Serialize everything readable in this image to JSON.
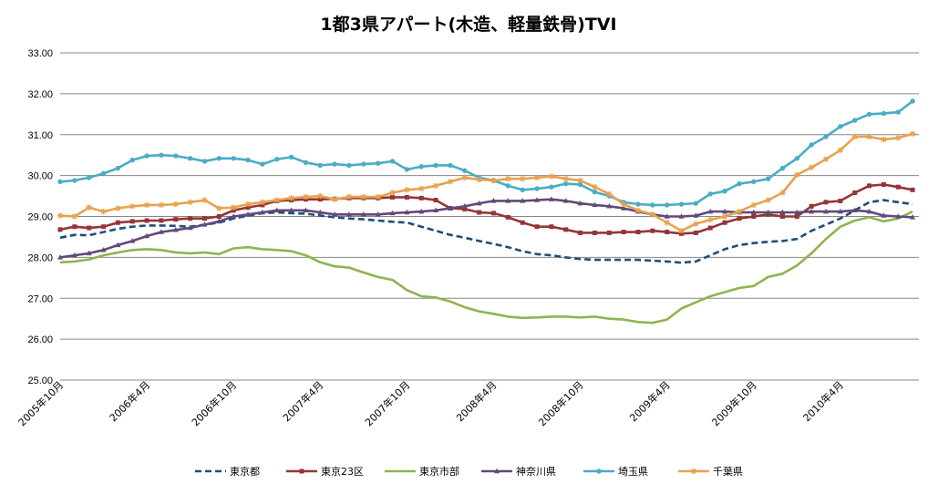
{
  "chart_data": {
    "type": "line",
    "title": "1都3県アパート(木造、軽量鉄骨)TVI",
    "ylim": [
      25.0,
      33.0
    ],
    "yticks": [
      "25.00",
      "26.00",
      "27.00",
      "28.00",
      "29.00",
      "30.00",
      "31.00",
      "32.00",
      "33.00"
    ],
    "grid": true,
    "legend_position": "bottom",
    "x_tick_labels": [
      "2005年10月",
      "2006年4月",
      "2006年10月",
      "2007年4月",
      "2007年10月",
      "2008年4月",
      "2008年10月",
      "2009年4月",
      "2009年10月",
      "2010年4月"
    ],
    "x": [
      "2005-10",
      "2005-11",
      "2005-12",
      "2006-01",
      "2006-02",
      "2006-03",
      "2006-04",
      "2006-05",
      "2006-06",
      "2006-07",
      "2006-08",
      "2006-09",
      "2006-10",
      "2006-11",
      "2006-12",
      "2007-01",
      "2007-02",
      "2007-03",
      "2007-04",
      "2007-05",
      "2007-06",
      "2007-07",
      "2007-08",
      "2007-09",
      "2007-10",
      "2007-11",
      "2007-12",
      "2008-01",
      "2008-02",
      "2008-03",
      "2008-04",
      "2008-05",
      "2008-06",
      "2008-07",
      "2008-08",
      "2008-09",
      "2008-10",
      "2008-11",
      "2008-12",
      "2009-01",
      "2009-02",
      "2009-03",
      "2009-04",
      "2009-05",
      "2009-06",
      "2009-07",
      "2009-08",
      "2009-09",
      "2009-10",
      "2009-11",
      "2009-12",
      "2010-01",
      "2010-02",
      "2010-03",
      "2010-04",
      "2010-05",
      "2010-06",
      "2010-07",
      "2010-08",
      "2010-09"
    ],
    "series": [
      {
        "name": "東京都",
        "color": "#1F4E79",
        "style": "dashed",
        "marker": "none",
        "values": [
          28.48,
          28.55,
          28.54,
          28.62,
          28.7,
          28.75,
          28.78,
          28.78,
          28.77,
          28.75,
          28.8,
          28.85,
          28.95,
          29.02,
          29.08,
          29.1,
          29.08,
          29.07,
          29.02,
          28.98,
          28.95,
          28.93,
          28.9,
          28.87,
          28.85,
          28.75,
          28.65,
          28.55,
          28.48,
          28.4,
          28.33,
          28.25,
          28.15,
          28.08,
          28.05,
          28.0,
          27.96,
          27.94,
          27.94,
          27.94,
          27.94,
          27.92,
          27.9,
          27.87,
          27.9,
          28.05,
          28.2,
          28.3,
          28.35,
          28.38,
          28.4,
          28.45,
          28.65,
          28.8,
          28.95,
          29.15,
          29.35,
          29.4,
          29.35,
          29.3
        ]
      },
      {
        "name": "東京23区",
        "color": "#943634",
        "style": "solid",
        "marker": "square",
        "values": [
          28.68,
          28.75,
          28.72,
          28.75,
          28.85,
          28.88,
          28.9,
          28.9,
          28.93,
          28.95,
          28.95,
          29.0,
          29.15,
          29.22,
          29.28,
          29.38,
          29.4,
          29.42,
          29.42,
          29.43,
          29.45,
          29.45,
          29.45,
          29.47,
          29.47,
          29.45,
          29.4,
          29.2,
          29.18,
          29.1,
          29.08,
          28.98,
          28.85,
          28.75,
          28.75,
          28.68,
          28.6,
          28.6,
          28.6,
          28.62,
          28.62,
          28.65,
          28.62,
          28.58,
          28.6,
          28.72,
          28.85,
          28.95,
          29.0,
          29.05,
          29.0,
          29.0,
          29.25,
          29.35,
          29.38,
          29.58,
          29.75,
          29.78,
          29.72,
          29.65
        ]
      },
      {
        "name": "東京市部",
        "color": "#8EB44F",
        "style": "solid",
        "marker": "none",
        "values": [
          27.88,
          27.9,
          27.95,
          28.05,
          28.12,
          28.18,
          28.2,
          28.18,
          28.12,
          28.1,
          28.12,
          28.08,
          28.22,
          28.25,
          28.2,
          28.18,
          28.15,
          28.05,
          27.88,
          27.78,
          27.75,
          27.63,
          27.52,
          27.45,
          27.2,
          27.05,
          27.02,
          26.92,
          26.78,
          26.68,
          26.62,
          26.55,
          26.52,
          26.53,
          26.55,
          26.55,
          26.53,
          26.55,
          26.5,
          26.48,
          26.42,
          26.4,
          26.48,
          26.75,
          26.9,
          27.05,
          27.15,
          27.25,
          27.3,
          27.52,
          27.6,
          27.8,
          28.1,
          28.45,
          28.75,
          28.9,
          28.98,
          28.88,
          28.95,
          29.12
        ]
      },
      {
        "name": "神奈川県",
        "color": "#60497B",
        "style": "solid",
        "marker": "triangle",
        "values": [
          28.0,
          28.05,
          28.1,
          28.18,
          28.3,
          28.4,
          28.52,
          28.62,
          28.67,
          28.72,
          28.8,
          28.88,
          29.0,
          29.05,
          29.1,
          29.15,
          29.15,
          29.15,
          29.1,
          29.05,
          29.05,
          29.05,
          29.05,
          29.08,
          29.1,
          29.12,
          29.15,
          29.2,
          29.25,
          29.32,
          29.38,
          29.38,
          29.38,
          29.4,
          29.42,
          29.38,
          29.32,
          29.28,
          29.25,
          29.2,
          29.12,
          29.05,
          29.0,
          29.0,
          29.02,
          29.12,
          29.12,
          29.1,
          29.1,
          29.1,
          29.1,
          29.1,
          29.12,
          29.12,
          29.12,
          29.15,
          29.12,
          29.02,
          29.0,
          28.98
        ]
      },
      {
        "name": "埼玉県",
        "color": "#4AACC6",
        "style": "solid",
        "marker": "circle",
        "values": [
          29.85,
          29.88,
          29.95,
          30.05,
          30.18,
          30.38,
          30.48,
          30.5,
          30.48,
          30.42,
          30.35,
          30.42,
          30.42,
          30.38,
          30.28,
          30.4,
          30.45,
          30.32,
          30.25,
          30.28,
          30.25,
          30.28,
          30.3,
          30.35,
          30.15,
          30.22,
          30.25,
          30.25,
          30.12,
          29.95,
          29.88,
          29.75,
          29.65,
          29.68,
          29.72,
          29.8,
          29.78,
          29.6,
          29.5,
          29.35,
          29.3,
          29.28,
          29.28,
          29.3,
          29.32,
          29.55,
          29.62,
          29.8,
          29.85,
          29.92,
          30.18,
          30.42,
          30.75,
          30.95,
          31.2,
          31.35,
          31.5,
          31.52,
          31.55,
          31.82
        ]
      },
      {
        "name": "千葉県",
        "color": "#E8A24F",
        "style": "solid",
        "marker": "star",
        "values": [
          29.02,
          29.0,
          29.22,
          29.12,
          29.2,
          29.25,
          29.28,
          29.28,
          29.3,
          29.35,
          29.4,
          29.2,
          29.22,
          29.3,
          29.35,
          29.4,
          29.45,
          29.48,
          29.5,
          29.42,
          29.48,
          29.48,
          29.48,
          29.58,
          29.65,
          29.68,
          29.75,
          29.85,
          29.95,
          29.9,
          29.88,
          29.92,
          29.92,
          29.95,
          29.98,
          29.92,
          29.88,
          29.72,
          29.55,
          29.3,
          29.15,
          29.05,
          28.85,
          28.65,
          28.82,
          28.92,
          29.0,
          29.12,
          29.28,
          29.4,
          29.58,
          30.02,
          30.2,
          30.4,
          30.62,
          30.95,
          30.95,
          30.88,
          30.92,
          31.02
        ]
      }
    ]
  }
}
